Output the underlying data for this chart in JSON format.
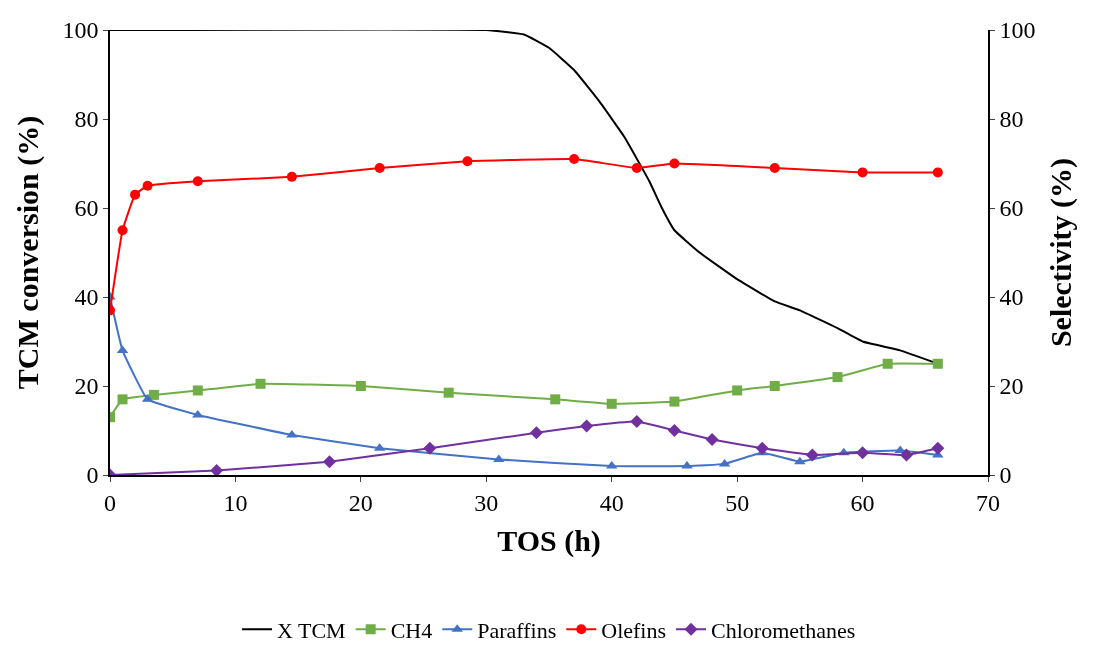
{
  "chart_data": {
    "type": "line",
    "xlabel": "TOS (h)",
    "ylabel": "TCM conversion (%)",
    "y2label": "Selectivity (%)",
    "xlim": [
      0,
      70
    ],
    "xticks": [
      0,
      10,
      20,
      30,
      40,
      50,
      60,
      70
    ],
    "ylim": [
      0,
      100
    ],
    "yticks": [
      0,
      20,
      40,
      60,
      80,
      100
    ],
    "y2lim": [
      0,
      100
    ],
    "y2ticks": [
      0,
      20,
      40,
      60,
      80,
      100
    ],
    "legend": "bottom",
    "series": [
      {
        "name": "X TCM",
        "color": "#000000",
        "marker": "none",
        "x": [
          0,
          30,
          33,
          35,
          37,
          39,
          41,
          43,
          44,
          45,
          47,
          50,
          53,
          55,
          58,
          60,
          63,
          66
        ],
        "values": [
          100,
          100,
          99,
          96,
          91,
          84,
          76,
          66,
          60,
          55,
          50,
          44,
          39,
          37,
          33,
          30,
          28,
          25
        ]
      },
      {
        "name": "CH4",
        "color": "#70ad47",
        "marker": "square",
        "axis": "y2",
        "x": [
          0,
          1,
          3.5,
          7,
          12,
          20,
          27,
          35.5,
          40,
          45,
          50,
          53,
          58,
          62,
          66
        ],
        "values": [
          13,
          17,
          18,
          19,
          20.5,
          20,
          18.5,
          17,
          16,
          16.5,
          19,
          20,
          22,
          25,
          25
        ]
      },
      {
        "name": "Paraffins",
        "color": "#4472c4",
        "marker": "triangle",
        "axis": "y2",
        "x": [
          0,
          1,
          3,
          7,
          14.5,
          21.5,
          31,
          40,
          46,
          49,
          52,
          55,
          58.5,
          63,
          66
        ],
        "values": [
          40,
          28,
          17,
          13.5,
          9,
          6,
          3.5,
          2,
          2,
          2.5,
          5,
          3,
          5,
          5.5,
          4.5
        ]
      },
      {
        "name": "Olefins",
        "color": "#ff0000",
        "marker": "circle",
        "axis": "y2",
        "x": [
          0,
          1,
          2,
          3,
          7,
          14.5,
          21.5,
          28.5,
          37,
          42,
          45,
          53,
          60,
          66
        ],
        "values": [
          37,
          55,
          63,
          65,
          66,
          67,
          69,
          70.5,
          71,
          69,
          70,
          69,
          68,
          68
        ]
      },
      {
        "name": "Chloromethanes",
        "color": "#7030a0",
        "marker": "diamond",
        "axis": "y2",
        "x": [
          0,
          8.5,
          17.5,
          25.5,
          34,
          38,
          42,
          45,
          48,
          52,
          56,
          60,
          63.5,
          66
        ],
        "values": [
          0,
          1,
          3,
          6,
          9.5,
          11,
          12,
          10,
          8,
          6,
          4.5,
          5,
          4.5,
          6
        ]
      }
    ]
  }
}
